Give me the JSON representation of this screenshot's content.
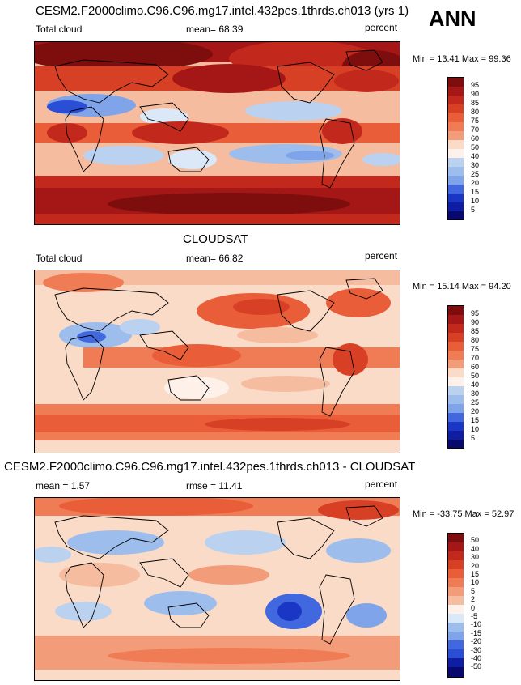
{
  "season": "ANN",
  "colors": {
    "pos": [
      "#7e0e0e",
      "#a51717",
      "#c3281d",
      "#d84026",
      "#e95e38",
      "#ef7c55",
      "#f39c7a",
      "#f6bc9f",
      "#fadbc8",
      "#fdf1ea"
    ],
    "neg": [
      "#dbe8f7",
      "#bad2f0",
      "#9dbdec",
      "#7fa4e9",
      "#5f85e4",
      "#4168df",
      "#2a4fd6",
      "#1a36c4",
      "#0f1da3",
      "#07096e"
    ],
    "abs": [
      "#07096e",
      "#0f1da3",
      "#1a36c4",
      "#2a4fd6",
      "#4168df",
      "#5f85e4",
      "#7fa4e9",
      "#9dbdec",
      "#bad2f0",
      "#dbe8f7",
      "#fdf1ea",
      "#fadbc8",
      "#f6bc9f",
      "#f39c7a",
      "#ef7c55",
      "#e95e38",
      "#d84026",
      "#c3281d",
      "#a51717",
      "#7e0e0e"
    ],
    "diff": [
      "#07096e",
      "#0f1da3",
      "#1a36c4",
      "#2a4fd6",
      "#4168df",
      "#5f85e4",
      "#7fa4e9",
      "#9dbdec",
      "#bad2f0",
      "#dbe8f7",
      "#fdf1ea",
      "#fadbc8",
      "#f6bc9f",
      "#f39c7a",
      "#ef7c55",
      "#e95e38",
      "#d84026",
      "#c3281d",
      "#a51717",
      "#7e0e0e"
    ]
  },
  "panels": [
    {
      "title": "CESM2.F2000climo.C96.C96.mg17.intel.432pes.1thrds.ch013 (yrs 1)",
      "left_label": "Total cloud",
      "mean_label": "mean=  68.39",
      "units": "percent",
      "minmax": "Min =  13.41 Max =  99.36",
      "colorbar_labels": [
        "95",
        "90",
        "85",
        "80",
        "75",
        "70",
        "60",
        "50",
        "40",
        "30",
        "25",
        "20",
        "15",
        "10",
        "5"
      ]
    },
    {
      "title": "CLOUDSAT",
      "left_label": "Total cloud",
      "mean_label": "mean=  66.82",
      "units": "percent",
      "minmax": "Min =  15.14 Max =  94.20",
      "colorbar_labels": [
        "95",
        "90",
        "85",
        "80",
        "75",
        "70",
        "60",
        "50",
        "40",
        "30",
        "25",
        "20",
        "15",
        "10",
        "5"
      ]
    },
    {
      "title": "CESM2.F2000climo.C96.C96.mg17.intel.432pes.1thrds.ch013 - CLOUDSAT",
      "left_label": "mean =   1.57",
      "mean_label": "rmse =  11.41",
      "units": "percent",
      "minmax": "Min = -33.75 Max =  52.97",
      "colorbar_labels": [
        "50",
        "40",
        "30",
        "20",
        "15",
        "10",
        "5",
        "2",
        "0",
        "-5",
        "-10",
        "-15",
        "-20",
        "-30",
        "-40",
        "-50"
      ]
    }
  ]
}
